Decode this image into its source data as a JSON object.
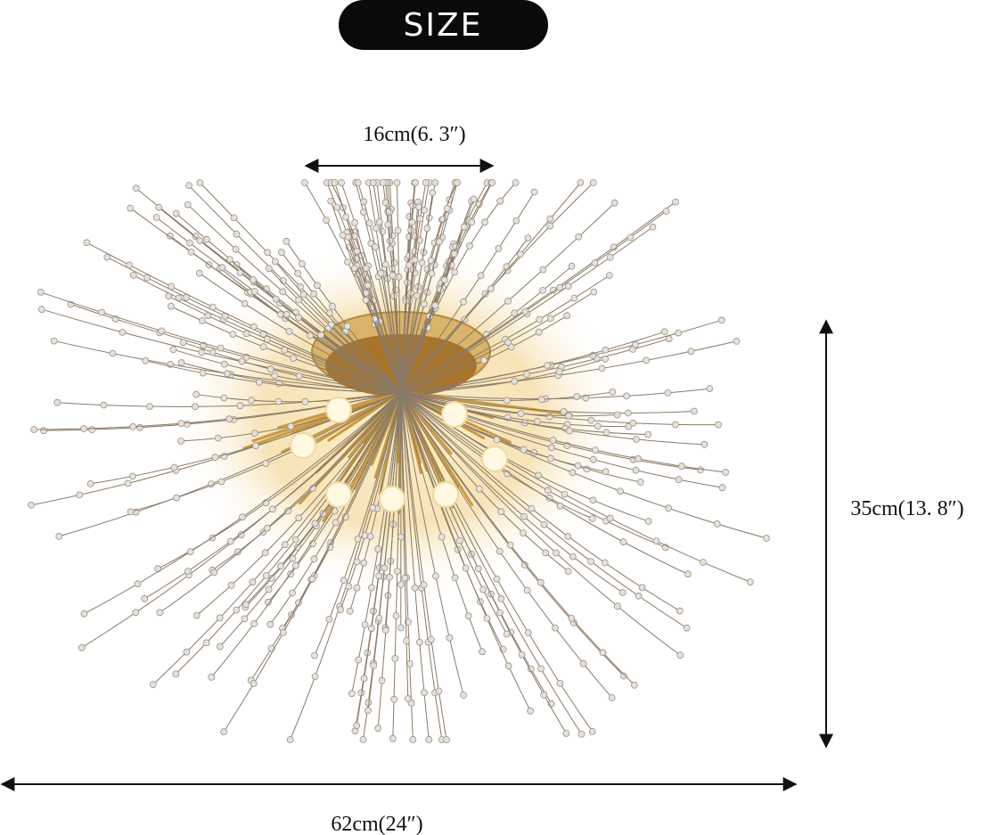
{
  "title": "SIZE",
  "dimensions": {
    "top_width": "16cm(6. 3″)",
    "height": "35cm(13. 8″)",
    "width": "62cm(24″)"
  }
}
